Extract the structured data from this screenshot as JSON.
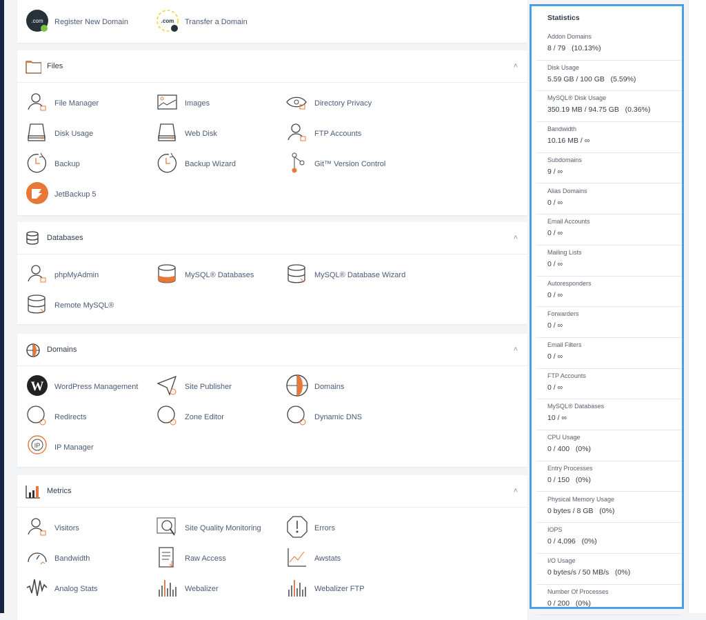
{
  "colors": {
    "accent": "#4aa0e6",
    "icon_orange": "#e8773a",
    "navbar": "#172344"
  },
  "top_panel": {
    "items": [
      {
        "label": "Register New Domain",
        "icon": "com-register-icon"
      },
      {
        "label": "Transfer a Domain",
        "icon": "com-transfer-icon"
      }
    ]
  },
  "sections": [
    {
      "title": "Files",
      "icon": "folder-icon",
      "items": [
        {
          "label": "File Manager",
          "icon": "person"
        },
        {
          "label": "Images",
          "icon": "image"
        },
        {
          "label": "Directory Privacy",
          "icon": "eye"
        },
        {
          "label": "Disk Usage",
          "icon": "disk"
        },
        {
          "label": "Web Disk",
          "icon": "disk"
        },
        {
          "label": "FTP Accounts",
          "icon": "person"
        },
        {
          "label": "Backup",
          "icon": "clock"
        },
        {
          "label": "Backup Wizard",
          "icon": "clock"
        },
        {
          "label": "Git™ Version Control",
          "icon": "branch"
        },
        {
          "label": "JetBackup 5",
          "icon": "jet"
        }
      ]
    },
    {
      "title": "Databases",
      "icon": "database-icon",
      "items": [
        {
          "label": "phpMyAdmin",
          "icon": "person"
        },
        {
          "label": "MySQL® Databases",
          "icon": "dbfill"
        },
        {
          "label": "MySQL® Database Wizard",
          "icon": "db"
        },
        {
          "label": "Remote MySQL®",
          "icon": "db"
        }
      ]
    },
    {
      "title": "Domains",
      "icon": "globe-icon",
      "items": [
        {
          "label": "WordPress Management",
          "icon": "wp"
        },
        {
          "label": "Site Publisher",
          "icon": "plane"
        },
        {
          "label": "Domains",
          "icon": "globe"
        },
        {
          "label": "Redirects",
          "icon": "circle"
        },
        {
          "label": "Zone Editor",
          "icon": "circle"
        },
        {
          "label": "Dynamic DNS",
          "icon": "circle"
        },
        {
          "label": "IP Manager",
          "icon": "ip"
        }
      ]
    },
    {
      "title": "Metrics",
      "icon": "chart-icon",
      "items": [
        {
          "label": "Visitors",
          "icon": "person"
        },
        {
          "label": "Site Quality Monitoring",
          "icon": "magnify"
        },
        {
          "label": "Errors",
          "icon": "octagon"
        },
        {
          "label": "Bandwidth",
          "icon": "gauge"
        },
        {
          "label": "Raw Access",
          "icon": "doc"
        },
        {
          "label": "Awstats",
          "icon": "line"
        },
        {
          "label": "Analog Stats",
          "icon": "wave"
        },
        {
          "label": "Webalizer",
          "icon": "bars"
        },
        {
          "label": "Webalizer FTP",
          "icon": "bars"
        }
      ]
    }
  ],
  "statistics": {
    "title": "Statistics",
    "rows": [
      {
        "label": "Addon Domains",
        "value": "8 / 79   (10.13%)"
      },
      {
        "label": "Disk Usage",
        "value": "5.59 GB / 100 GB   (5.59%)"
      },
      {
        "label": "MySQL® Disk Usage",
        "value": "350.19 MB / 94.75 GB   (0.36%)"
      },
      {
        "label": "Bandwidth",
        "value": "10.16 MB / ∞"
      },
      {
        "label": "Subdomains",
        "value": "9 / ∞"
      },
      {
        "label": "Alias Domains",
        "value": "0 / ∞"
      },
      {
        "label": "Email Accounts",
        "value": "0 / ∞"
      },
      {
        "label": "Mailing Lists",
        "value": "0 / ∞"
      },
      {
        "label": "Autoresponders",
        "value": "0 / ∞"
      },
      {
        "label": "Forwarders",
        "value": "0 / ∞"
      },
      {
        "label": "Email Filters",
        "value": "0 / ∞"
      },
      {
        "label": "FTP Accounts",
        "value": "0 / ∞"
      },
      {
        "label": "MySQL® Databases",
        "value": "10 / ∞"
      },
      {
        "label": "CPU Usage",
        "value": "0 / 400   (0%)"
      },
      {
        "label": "Entry Processes",
        "value": "0 / 150   (0%)"
      },
      {
        "label": "Physical Memory Usage",
        "value": "0 bytes / 8 GB   (0%)"
      },
      {
        "label": "IOPS",
        "value": "0 / 4,096   (0%)"
      },
      {
        "label": "I/O Usage",
        "value": "0 bytes/s / 50 MB/s   (0%)"
      },
      {
        "label": "Number Of Processes",
        "value": "0 / 200   (0%)"
      }
    ]
  }
}
